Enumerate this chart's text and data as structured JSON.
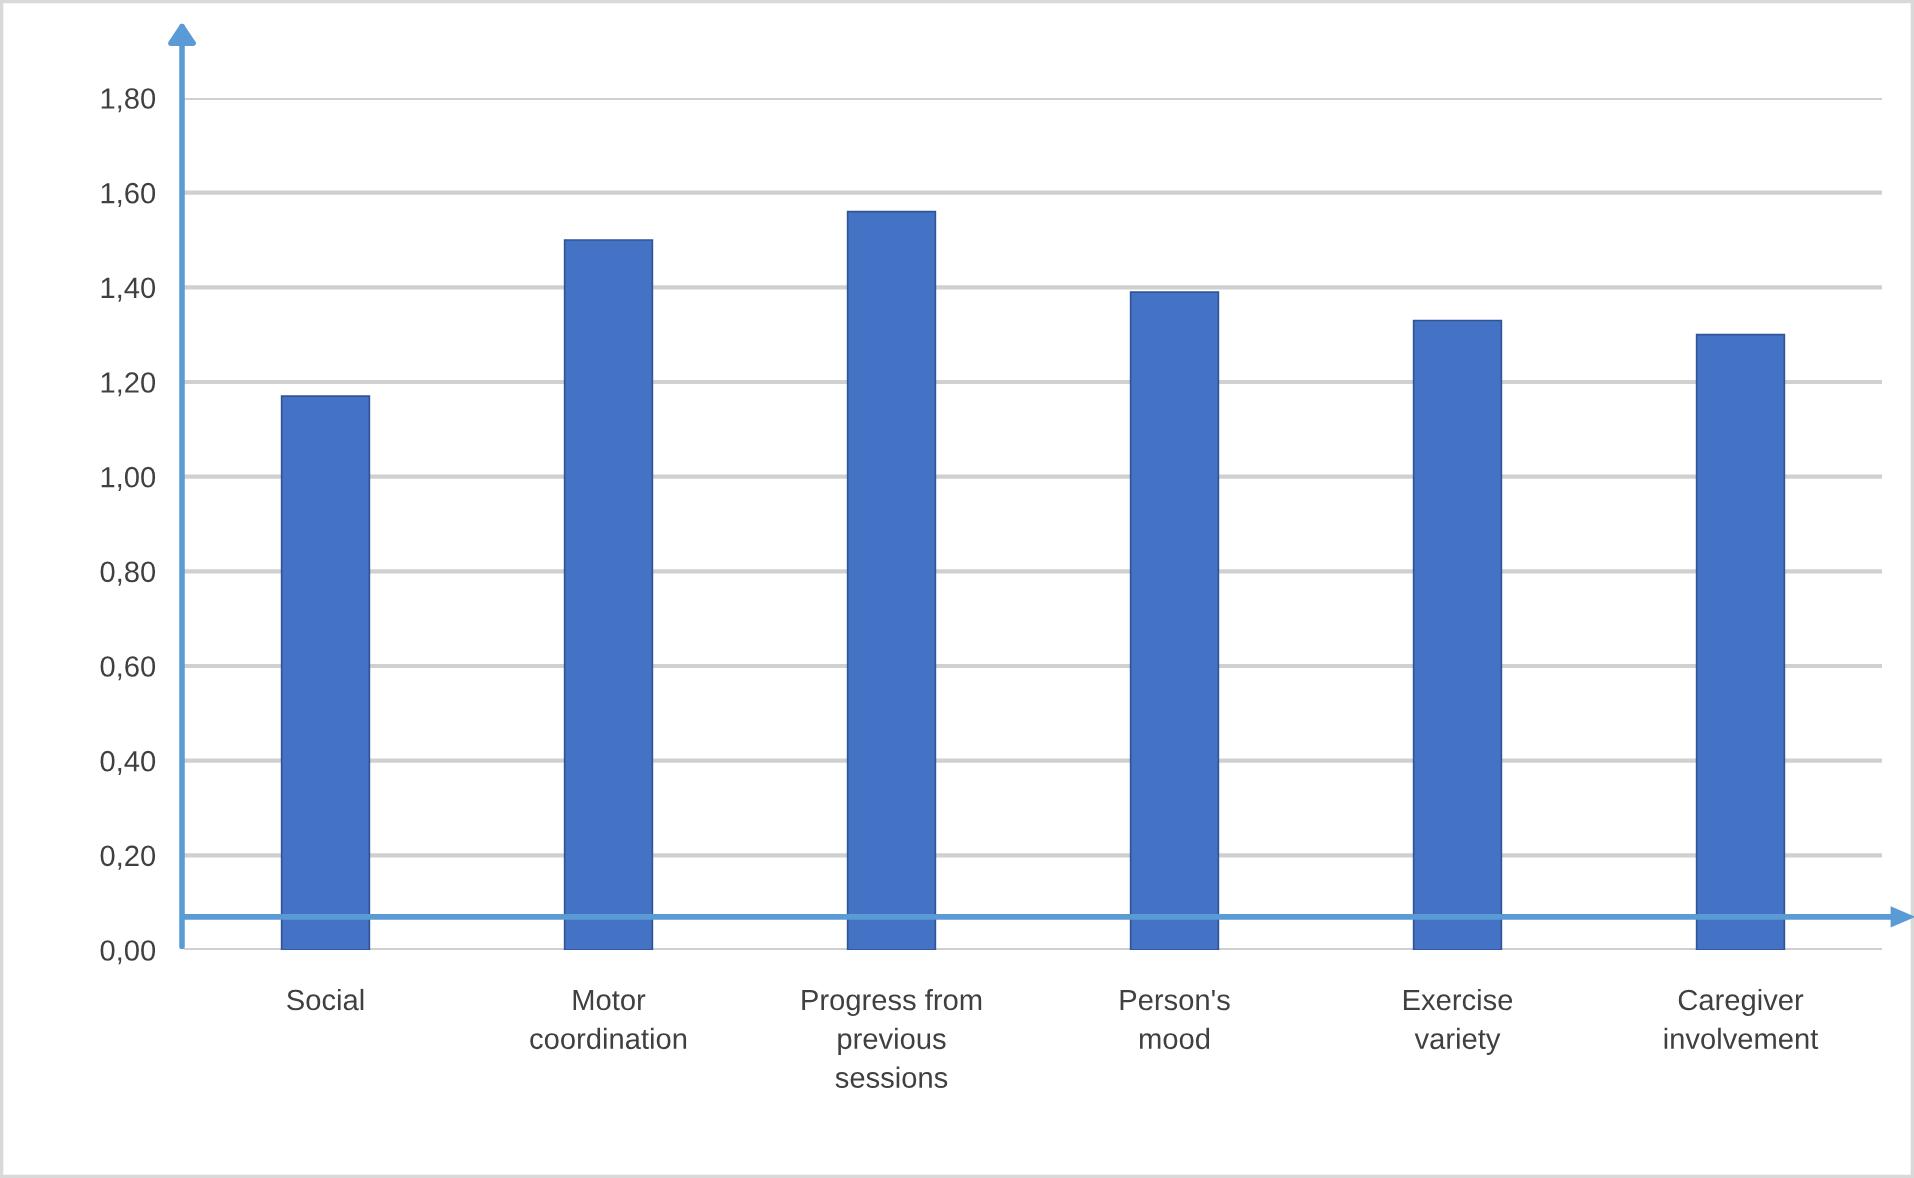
{
  "chart_data": {
    "type": "bar",
    "categories": [
      "Social",
      "Motor\ncoordination",
      "Progress from\nprevious\nsessions",
      "Person's\nmood",
      "Exercise\nvariety",
      "Caregiver\ninvolvement"
    ],
    "values": [
      1.17,
      1.5,
      1.56,
      1.39,
      1.33,
      1.3
    ],
    "color": "#4472c4",
    "ylim": [
      0,
      1.8
    ],
    "yticks": [
      {
        "value": 0,
        "label": "0,00"
      },
      {
        "value": 0.2,
        "label": "0,20"
      },
      {
        "value": 0.4,
        "label": "0,40"
      },
      {
        "value": 0.6,
        "label": "0,60"
      },
      {
        "value": 0.8,
        "label": "0,80"
      },
      {
        "value": 1.0,
        "label": "1,00"
      },
      {
        "value": 1.2,
        "label": "1,20"
      },
      {
        "value": 1.4,
        "label": "1,40"
      },
      {
        "value": 1.6,
        "label": "1,60"
      },
      {
        "value": 1.8,
        "label": "1,80"
      }
    ],
    "grid": "y",
    "ref_lines": [
      {
        "axis": "y",
        "value": 0.07,
        "color": "#5b9bd5"
      }
    ]
  }
}
